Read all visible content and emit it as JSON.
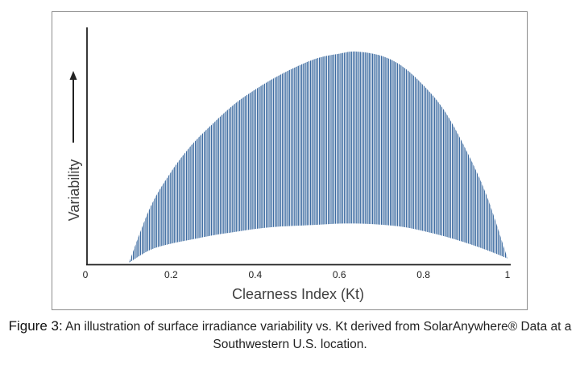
{
  "chart_data": {
    "type": "area",
    "xlabel": "Clearness Index (Kt)",
    "ylabel": "Variability",
    "xlim": [
      0,
      1
    ],
    "x_ticks": [
      "0",
      "0.2",
      "0.4",
      "0.6",
      "0.8",
      "1"
    ],
    "y_ticks": [],
    "fill_style": "vertical-hatch",
    "fill_color": "#3b6aa0",
    "series": [
      {
        "role": "upper",
        "x": [
          0.1,
          0.15,
          0.2,
          0.25,
          0.3,
          0.35,
          0.4,
          0.45,
          0.5,
          0.55,
          0.6,
          0.64,
          0.7,
          0.75,
          0.8,
          0.85,
          0.9,
          0.95,
          1.0
        ],
        "values": [
          0.0,
          0.26,
          0.43,
          0.56,
          0.66,
          0.75,
          0.82,
          0.88,
          0.93,
          0.97,
          0.99,
          1.0,
          0.98,
          0.93,
          0.84,
          0.72,
          0.54,
          0.32,
          0.02
        ]
      },
      {
        "role": "lower",
        "x": [
          0.1,
          0.15,
          0.2,
          0.25,
          0.3,
          0.35,
          0.4,
          0.45,
          0.5,
          0.55,
          0.6,
          0.65,
          0.7,
          0.75,
          0.8,
          0.85,
          0.9,
          0.95,
          1.0
        ],
        "values": [
          0.0,
          0.06,
          0.09,
          0.11,
          0.13,
          0.145,
          0.16,
          0.17,
          0.175,
          0.18,
          0.185,
          0.185,
          0.18,
          0.17,
          0.15,
          0.125,
          0.095,
          0.06,
          0.02
        ]
      }
    ]
  },
  "caption": {
    "label": "Figure 3:",
    "text": " An illustration of surface irradiance variability vs. Kt derived from SolarAnywhere® Data at a Southwestern U.S. location."
  }
}
